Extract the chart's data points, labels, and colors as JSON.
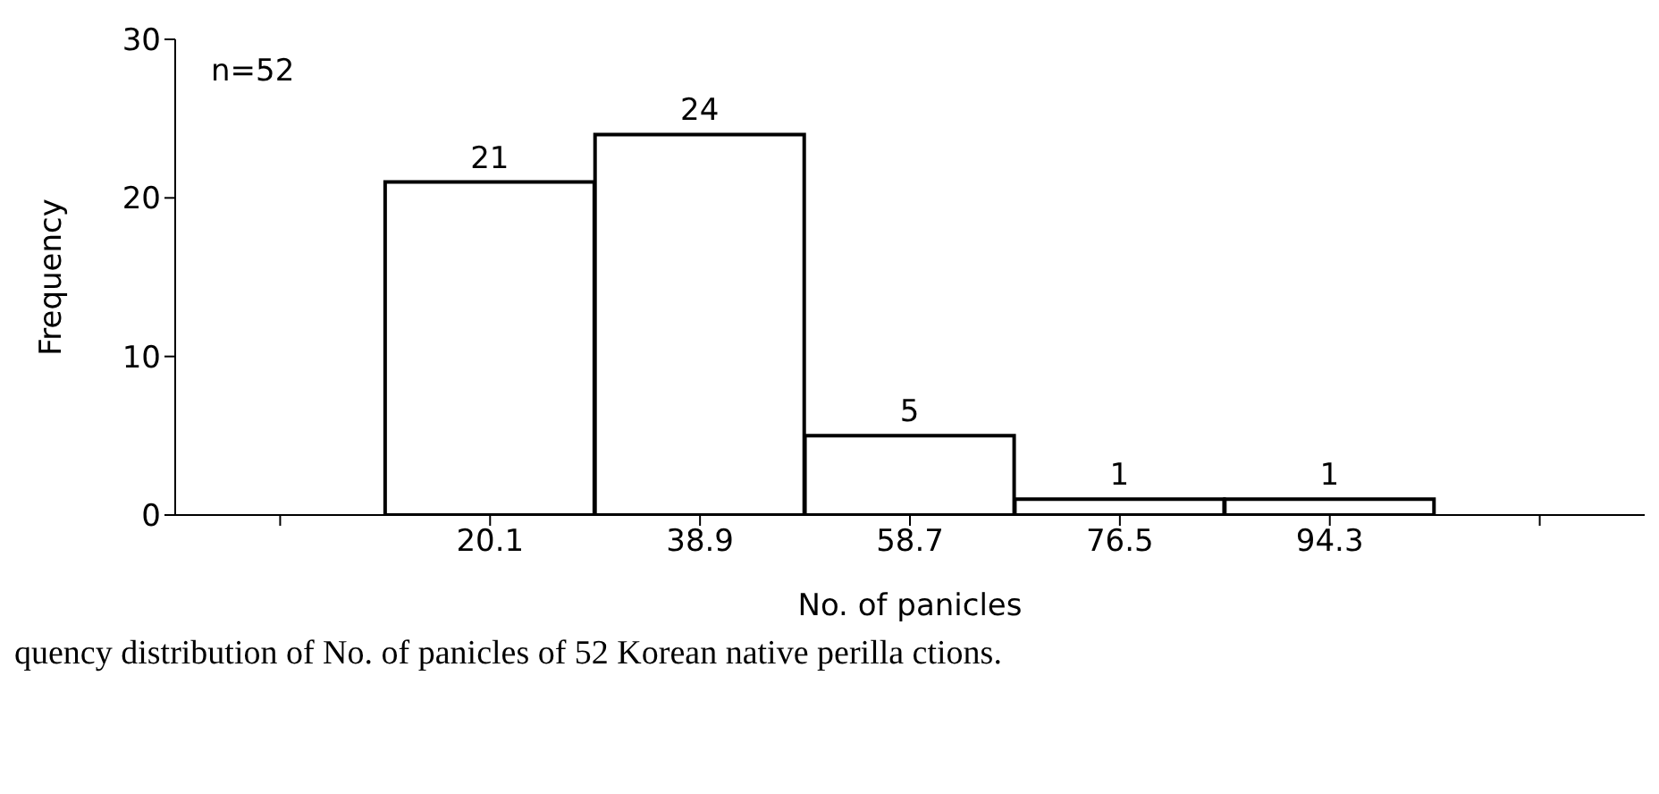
{
  "chart_data": {
    "type": "bar",
    "categories": [
      null,
      "20.1",
      "38.9",
      "58.7",
      "76.5",
      "94.3",
      null
    ],
    "values": [
      null,
      21,
      24,
      5,
      1,
      1,
      null
    ],
    "color": "#ffffff",
    "xlabel": "No. of panicles",
    "ylabel": "Frequency",
    "ylim": [
      0,
      30
    ],
    "yticks": [
      0,
      10,
      20,
      30
    ],
    "data_labels": true,
    "annotations": [
      "n=52",
      "quency distribution of No. of panicles of 52 Korean native perilla ctions."
    ]
  }
}
